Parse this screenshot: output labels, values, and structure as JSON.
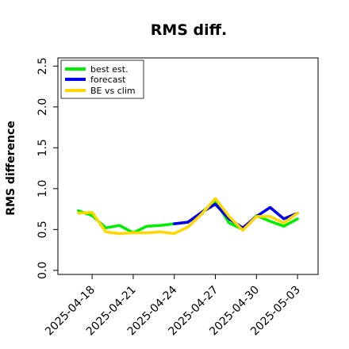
{
  "chart_data": {
    "type": "line",
    "title": "RMS diff.",
    "ylabel": "RMS difference",
    "xlabel": "",
    "ylim": [
      -0.05,
      2.6
    ],
    "yticks": [
      "0.0",
      "0.5",
      "1.0",
      "1.5",
      "2.0",
      "2.5"
    ],
    "ytick_values": [
      0.0,
      0.5,
      1.0,
      1.5,
      2.0,
      2.5
    ],
    "xticks": [
      "2025-04-18",
      "2025-04-21",
      "2025-04-24",
      "2025-04-27",
      "2025-04-30",
      "2025-05-03"
    ],
    "xtick_colors": [
      "#000000",
      "#000000",
      "#228B22",
      "#000000",
      "#000000",
      "#000000"
    ],
    "legend": {
      "placement": "top-left",
      "border": true
    },
    "series": [
      {
        "name": "best est.",
        "color": "#00ee00",
        "x": [
          "2025-04-17",
          "2025-04-18",
          "2025-04-19",
          "2025-04-20",
          "2025-04-21",
          "2025-04-22",
          "2025-04-23",
          "2025-04-24",
          "2025-04-25",
          "2025-04-26",
          "2025-04-27",
          "2025-04-28",
          "2025-04-29",
          "2025-04-30",
          "2025-05-01",
          "2025-05-02",
          "2025-05-03"
        ],
        "y": [
          0.73,
          0.67,
          0.52,
          0.55,
          0.46,
          0.54,
          0.55,
          0.57,
          0.59,
          0.71,
          0.85,
          0.58,
          0.5,
          0.67,
          0.6,
          0.54,
          0.63
        ]
      },
      {
        "name": "forecast",
        "color": "#0000ee",
        "x": [
          "2025-04-24",
          "2025-04-25",
          "2025-04-26",
          "2025-04-27",
          "2025-04-28",
          "2025-04-29",
          "2025-04-30",
          "2025-05-01",
          "2025-05-02",
          "2025-05-03"
        ],
        "y": [
          0.57,
          0.59,
          0.71,
          0.81,
          0.63,
          0.52,
          0.66,
          0.77,
          0.63,
          0.7
        ]
      },
      {
        "name": "BE vs clim",
        "color": "#ffd700",
        "x": [
          "2025-04-17",
          "2025-04-18",
          "2025-04-19",
          "2025-04-20",
          "2025-04-21",
          "2025-04-22",
          "2025-04-23",
          "2025-04-24",
          "2025-04-25",
          "2025-04-26",
          "2025-04-27",
          "2025-04-28",
          "2025-04-29",
          "2025-04-30",
          "2025-05-01",
          "2025-05-02",
          "2025-05-03"
        ],
        "y": [
          0.7,
          0.71,
          0.47,
          0.45,
          0.46,
          0.46,
          0.47,
          0.45,
          0.53,
          0.69,
          0.88,
          0.66,
          0.49,
          0.66,
          0.66,
          0.58,
          0.7
        ]
      }
    ]
  }
}
